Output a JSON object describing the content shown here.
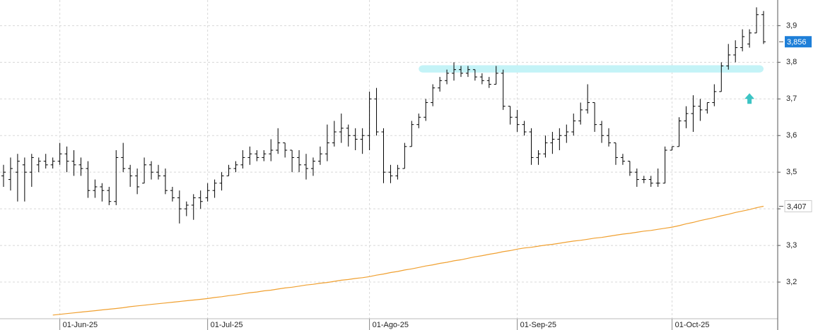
{
  "chart_data": {
    "type": "ohlc",
    "x": [
      "2025-05-21",
      "2025-05-22",
      "2025-05-23",
      "2025-05-26",
      "2025-05-27",
      "2025-05-28",
      "2025-05-29",
      "2025-05-30",
      "2025-06-02",
      "2025-06-03",
      "2025-06-04",
      "2025-06-05",
      "2025-06-06",
      "2025-06-09",
      "2025-06-10",
      "2025-06-11",
      "2025-06-12",
      "2025-06-13",
      "2025-06-16",
      "2025-06-17",
      "2025-06-18",
      "2025-06-19",
      "2025-06-20",
      "2025-06-23",
      "2025-06-24",
      "2025-06-25",
      "2025-06-26",
      "2025-06-27",
      "2025-06-30",
      "2025-07-01",
      "2025-07-02",
      "2025-07-03",
      "2025-07-04",
      "2025-07-07",
      "2025-07-08",
      "2025-07-09",
      "2025-07-10",
      "2025-07-11",
      "2025-07-14",
      "2025-07-15",
      "2025-07-16",
      "2025-07-17",
      "2025-07-18",
      "2025-07-21",
      "2025-07-22",
      "2025-07-23",
      "2025-07-24",
      "2025-07-25",
      "2025-07-28",
      "2025-07-29",
      "2025-07-30",
      "2025-07-31",
      "2025-08-01",
      "2025-08-04",
      "2025-08-05",
      "2025-08-06",
      "2025-08-07",
      "2025-08-08",
      "2025-08-11",
      "2025-08-12",
      "2025-08-13",
      "2025-08-14",
      "2025-08-15",
      "2025-08-18",
      "2025-08-19",
      "2025-08-20",
      "2025-08-21",
      "2025-08-22",
      "2025-08-25",
      "2025-08-26",
      "2025-08-27",
      "2025-08-28",
      "2025-08-29",
      "2025-09-01",
      "2025-09-02",
      "2025-09-03",
      "2025-09-04",
      "2025-09-05",
      "2025-09-08",
      "2025-09-09",
      "2025-09-10",
      "2025-09-11",
      "2025-09-12",
      "2025-09-15",
      "2025-09-16",
      "2025-09-17",
      "2025-09-18",
      "2025-09-19",
      "2025-09-22",
      "2025-09-23",
      "2025-09-24",
      "2025-09-25",
      "2025-09-26",
      "2025-09-29",
      "2025-09-30",
      "2025-10-01",
      "2025-10-02",
      "2025-10-03",
      "2025-10-06",
      "2025-10-07",
      "2025-10-08",
      "2025-10-09",
      "2025-10-10",
      "2025-10-13",
      "2025-10-14",
      "2025-10-15",
      "2025-10-16",
      "2025-10-17",
      "2025-10-20"
    ],
    "open": [
      3.49,
      3.48,
      3.5,
      3.52,
      3.5,
      3.52,
      3.53,
      3.52,
      3.53,
      3.55,
      3.53,
      3.52,
      3.51,
      3.45,
      3.46,
      3.45,
      3.42,
      3.54,
      3.51,
      3.49,
      3.47,
      3.52,
      3.5,
      3.49,
      3.45,
      3.43,
      3.4,
      3.41,
      3.43,
      3.43,
      3.45,
      3.47,
      3.49,
      3.51,
      3.52,
      3.54,
      3.55,
      3.54,
      3.55,
      3.56,
      3.58,
      3.56,
      3.54,
      3.52,
      3.51,
      3.53,
      3.55,
      3.58,
      3.61,
      3.62,
      3.6,
      3.59,
      3.6,
      3.7,
      3.61,
      3.5,
      3.49,
      3.51,
      3.57,
      3.63,
      3.65,
      3.69,
      3.73,
      3.75,
      3.77,
      3.78,
      3.77,
      3.78,
      3.76,
      3.75,
      3.74,
      3.77,
      3.68,
      3.65,
      3.63,
      3.61,
      3.54,
      3.55,
      3.58,
      3.59,
      3.6,
      3.61,
      3.64,
      3.67,
      3.69,
      3.63,
      3.6,
      3.58,
      3.54,
      3.53,
      3.5,
      3.48,
      3.48,
      3.47,
      3.47,
      3.56,
      3.57,
      3.64,
      3.66,
      3.68,
      3.67,
      3.69,
      3.72,
      3.79,
      3.82,
      3.84,
      3.85,
      3.88,
      3.93
    ],
    "high": [
      3.52,
      3.54,
      3.55,
      3.54,
      3.55,
      3.54,
      3.55,
      3.54,
      3.58,
      3.57,
      3.56,
      3.54,
      3.53,
      3.48,
      3.47,
      3.46,
      3.56,
      3.58,
      3.52,
      3.51,
      3.54,
      3.53,
      3.52,
      3.51,
      3.46,
      3.45,
      3.42,
      3.44,
      3.45,
      3.47,
      3.48,
      3.5,
      3.52,
      3.53,
      3.56,
      3.57,
      3.56,
      3.56,
      3.59,
      3.62,
      3.58,
      3.56,
      3.56,
      3.55,
      3.54,
      3.57,
      3.63,
      3.64,
      3.66,
      3.63,
      3.62,
      3.62,
      3.72,
      3.73,
      3.62,
      3.52,
      3.52,
      3.58,
      3.64,
      3.66,
      3.7,
      3.74,
      3.76,
      3.78,
      3.8,
      3.79,
      3.79,
      3.78,
      3.77,
      3.76,
      3.79,
      3.78,
      3.68,
      3.67,
      3.64,
      3.62,
      3.56,
      3.6,
      3.61,
      3.62,
      3.63,
      3.66,
      3.69,
      3.74,
      3.69,
      3.64,
      3.62,
      3.58,
      3.55,
      3.53,
      3.51,
      3.49,
      3.49,
      3.51,
      3.57,
      3.57,
      3.65,
      3.68,
      3.71,
      3.7,
      3.69,
      3.74,
      3.8,
      3.85,
      3.86,
      3.89,
      3.89,
      3.95,
      3.94
    ],
    "low": [
      3.46,
      3.45,
      3.42,
      3.42,
      3.46,
      3.5,
      3.51,
      3.51,
      3.52,
      3.5,
      3.49,
      3.49,
      3.43,
      3.43,
      3.42,
      3.41,
      3.41,
      3.5,
      3.46,
      3.44,
      3.47,
      3.48,
      3.48,
      3.44,
      3.42,
      3.36,
      3.38,
      3.37,
      3.4,
      3.42,
      3.43,
      3.45,
      3.49,
      3.5,
      3.51,
      3.52,
      3.53,
      3.53,
      3.53,
      3.55,
      3.54,
      3.5,
      3.5,
      3.48,
      3.49,
      3.52,
      3.53,
      3.57,
      3.58,
      3.57,
      3.56,
      3.55,
      3.56,
      3.6,
      3.47,
      3.47,
      3.48,
      3.51,
      3.57,
      3.62,
      3.64,
      3.68,
      3.72,
      3.74,
      3.75,
      3.76,
      3.76,
      3.75,
      3.74,
      3.73,
      3.74,
      3.67,
      3.63,
      3.61,
      3.6,
      3.52,
      3.52,
      3.54,
      3.55,
      3.56,
      3.58,
      3.6,
      3.63,
      3.66,
      3.61,
      3.58,
      3.57,
      3.52,
      3.52,
      3.49,
      3.46,
      3.47,
      3.46,
      3.46,
      3.47,
      3.56,
      3.57,
      3.62,
      3.61,
      3.64,
      3.66,
      3.68,
      3.72,
      3.78,
      3.8,
      3.83,
      3.84,
      3.88,
      3.85
    ],
    "close": [
      3.5,
      3.51,
      3.53,
      3.5,
      3.54,
      3.53,
      3.52,
      3.53,
      3.55,
      3.53,
      3.52,
      3.51,
      3.45,
      3.46,
      3.45,
      3.42,
      3.54,
      3.51,
      3.49,
      3.46,
      3.52,
      3.5,
      3.49,
      3.45,
      3.43,
      3.4,
      3.41,
      3.43,
      3.42,
      3.45,
      3.47,
      3.49,
      3.51,
      3.52,
      3.54,
      3.55,
      3.54,
      3.55,
      3.56,
      3.58,
      3.56,
      3.54,
      3.52,
      3.51,
      3.53,
      3.55,
      3.58,
      3.61,
      3.62,
      3.6,
      3.59,
      3.6,
      3.7,
      3.61,
      3.5,
      3.49,
      3.51,
      3.57,
      3.63,
      3.65,
      3.69,
      3.73,
      3.75,
      3.77,
      3.78,
      3.77,
      3.78,
      3.76,
      3.75,
      3.74,
      3.77,
      3.68,
      3.65,
      3.63,
      3.61,
      3.54,
      3.55,
      3.58,
      3.59,
      3.6,
      3.61,
      3.64,
      3.67,
      3.69,
      3.63,
      3.6,
      3.58,
      3.54,
      3.53,
      3.5,
      3.48,
      3.48,
      3.47,
      3.47,
      3.56,
      3.57,
      3.64,
      3.66,
      3.68,
      3.67,
      3.69,
      3.72,
      3.79,
      3.82,
      3.84,
      3.87,
      3.88,
      3.93,
      3.856
    ],
    "color": "#000000",
    "last_value_label": "3,856",
    "last_tag_color": "#1e7fd8",
    "moving_average": {
      "color": "#f0a030",
      "last_value_label": "3,407",
      "values": [
        null,
        null,
        null,
        null,
        null,
        null,
        null,
        3.11,
        3.112,
        3.114,
        3.116,
        3.118,
        3.12,
        3.122,
        3.124,
        3.126,
        3.128,
        3.13,
        3.133,
        3.135,
        3.137,
        3.139,
        3.141,
        3.143,
        3.145,
        3.147,
        3.149,
        3.151,
        3.153,
        3.155,
        3.158,
        3.16,
        3.163,
        3.165,
        3.168,
        3.171,
        3.173,
        3.176,
        3.178,
        3.181,
        3.184,
        3.186,
        3.189,
        3.192,
        3.194,
        3.197,
        3.199,
        3.202,
        3.205,
        3.207,
        3.21,
        3.212,
        3.215,
        3.219,
        3.222,
        3.226,
        3.229,
        3.233,
        3.236,
        3.24,
        3.244,
        3.247,
        3.251,
        3.254,
        3.258,
        3.261,
        3.265,
        3.269,
        3.272,
        3.276,
        3.279,
        3.283,
        3.286,
        3.29,
        3.293,
        3.295,
        3.298,
        3.301,
        3.303,
        3.306,
        3.309,
        3.312,
        3.314,
        3.317,
        3.32,
        3.322,
        3.325,
        3.328,
        3.331,
        3.333,
        3.336,
        3.339,
        3.341,
        3.344,
        3.347,
        3.35,
        3.354,
        3.359,
        3.363,
        3.368,
        3.372,
        3.376,
        3.381,
        3.385,
        3.39,
        3.394,
        3.398,
        3.403,
        3.407
      ]
    },
    "zone": {
      "low": 3.772,
      "high": 3.792,
      "start": "2025-08-12",
      "end": "2025-10-20",
      "color": "#c4f3f7"
    },
    "arrow": {
      "date": "2025-10-16",
      "value": 3.7,
      "color": "#3cc4c4"
    },
    "ylim": [
      3.1,
      3.97
    ],
    "yticks": [
      {
        "value": 3.2,
        "label": "3,2"
      },
      {
        "value": 3.3,
        "label": "3,3"
      },
      {
        "value": 3.4,
        "label": "3,4"
      },
      {
        "value": 3.5,
        "label": "3,5"
      },
      {
        "value": 3.6,
        "label": "3,6"
      },
      {
        "value": 3.7,
        "label": "3,7"
      },
      {
        "value": 3.8,
        "label": "3,8"
      },
      {
        "value": 3.9,
        "label": "3,9"
      }
    ],
    "xticks": [
      {
        "value": "2025-06-01",
        "label": "01-Jun-25"
      },
      {
        "value": "2025-07-01",
        "label": "01-Jul-25"
      },
      {
        "value": "2025-08-01",
        "label": "01-Ago-25"
      },
      {
        "value": "2025-09-01",
        "label": "01-Sep-25"
      },
      {
        "value": "2025-10-01",
        "label": "01-Oct-25"
      }
    ],
    "grid": true
  }
}
